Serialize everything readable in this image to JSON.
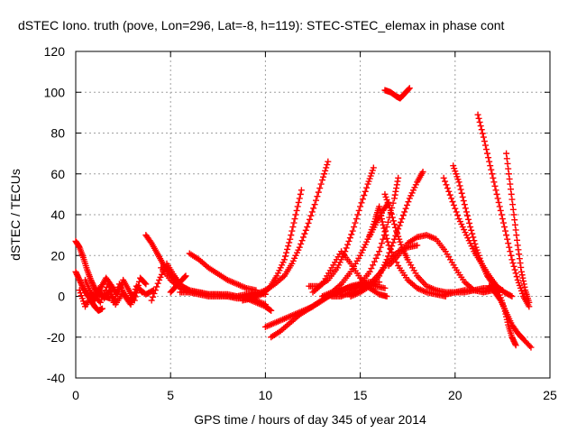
{
  "chart_data": {
    "type": "scatter",
    "title": "dSTEC Iono. truth (pove, Lon=296, Lat=-8, h=119): STEC-STEC_elemax in phase cont",
    "xlabel": "GPS time / hours of day 345 of year 2014",
    "ylabel": "dSTEC  / TECUs",
    "xlim": [
      0,
      25
    ],
    "ylim": [
      -40,
      120
    ],
    "xticks": [
      "0",
      "5",
      "10",
      "15",
      "20",
      "25"
    ],
    "yticks": [
      "-40",
      "-20",
      "0",
      "20",
      "40",
      "60",
      "80",
      "100",
      "120"
    ],
    "grid": true,
    "marker": "+",
    "color": "#ff0000",
    "series": [
      {
        "x": [
          0.0,
          0.2,
          0.4,
          0.6,
          0.8,
          1.0,
          1.2,
          1.4
        ],
        "y": [
          12,
          8,
          4,
          1,
          -2,
          -5,
          -7,
          -6
        ]
      },
      {
        "x": [
          0.0,
          0.2,
          0.4,
          0.6,
          0.8,
          1.0,
          1.2,
          1.5,
          1.8
        ],
        "y": [
          27,
          24,
          19,
          13,
          8,
          4,
          1,
          0,
          -1
        ]
      },
      {
        "x": [
          0.5,
          0.8,
          1.0,
          1.2,
          1.5,
          1.8,
          2.0,
          2.3,
          2.6,
          2.9,
          3.2,
          3.5
        ],
        "y": [
          8,
          2,
          -2,
          4,
          -1,
          3,
          -3,
          6,
          0,
          -4,
          5,
          2
        ]
      },
      {
        "x": [
          1.0,
          1.3,
          1.6,
          1.9,
          2.2,
          2.5,
          2.8,
          3.1,
          3.4,
          3.7
        ],
        "y": [
          0,
          4,
          9,
          5,
          1,
          8,
          3,
          -2,
          9,
          6
        ]
      },
      {
        "x": [
          0.2,
          0.5,
          0.9,
          1.3,
          1.7,
          2.1,
          2.5,
          2.9,
          3.3,
          3.7,
          4.1
        ],
        "y": [
          3,
          -5,
          1,
          -3,
          6,
          -4,
          2,
          -3,
          4,
          1,
          3
        ]
      },
      {
        "x": [
          3.7,
          4.0,
          4.3,
          4.6,
          4.9,
          5.2,
          5.5
        ],
        "y": [
          30,
          26,
          21,
          16,
          12,
          8,
          6
        ]
      },
      {
        "x": [
          4.0,
          4.4,
          4.8,
          5.2,
          5.6,
          6.0,
          6.5,
          7.0,
          7.5,
          8.0,
          8.5,
          9.0,
          9.5,
          10.0,
          10.3
        ],
        "y": [
          -2,
          8,
          16,
          10,
          5,
          3,
          2,
          1,
          1,
          0,
          0,
          -1,
          -3,
          -5,
          -7
        ]
      },
      {
        "x": [
          4.5,
          5.0,
          5.5,
          6.0,
          6.5,
          7.0,
          7.5,
          8.0,
          8.5,
          9.0,
          9.5,
          10.0
        ],
        "y": [
          14,
          8,
          4,
          2,
          1,
          0,
          0,
          0,
          -1,
          -1,
          -2,
          -4
        ]
      },
      {
        "x": [
          5.0,
          5.3,
          5.6,
          5.8
        ],
        "y": [
          2,
          5,
          8,
          10
        ]
      },
      {
        "x": [
          5.5,
          6.0,
          6.5,
          7.0,
          7.5,
          8.0,
          8.5,
          9.0,
          9.5,
          10.0
        ],
        "y": [
          2,
          2,
          2,
          1,
          1,
          1,
          0,
          1,
          2,
          1
        ]
      },
      {
        "x": [
          6.0,
          6.5,
          7.0,
          7.5,
          8.0,
          8.5,
          9.0,
          9.5
        ],
        "y": [
          21,
          18,
          14,
          11,
          8,
          6,
          4,
          3
        ]
      },
      {
        "x": [
          8.8,
          9.3,
          9.8,
          10.2,
          10.6,
          11.0,
          11.3,
          11.6,
          11.9
        ],
        "y": [
          -2,
          -1,
          1,
          4,
          10,
          18,
          28,
          40,
          52
        ]
      },
      {
        "x": [
          9.0,
          9.5,
          10.0,
          10.5,
          11.0,
          11.4,
          11.8,
          12.2,
          12.6,
          13.0,
          13.3
        ],
        "y": [
          0,
          1,
          3,
          6,
          10,
          16,
          24,
          34,
          45,
          57,
          66
        ]
      },
      {
        "x": [
          10.0,
          10.5,
          11.0,
          11.5,
          12.0,
          12.5,
          13.0,
          13.5,
          14.0,
          14.5,
          15.0,
          15.5,
          16.0
        ],
        "y": [
          -15,
          -13,
          -11,
          -9,
          -7,
          -5,
          -2,
          1,
          3,
          5,
          6,
          7,
          7
        ]
      },
      {
        "x": [
          10.3,
          10.8,
          11.3,
          11.8,
          12.3,
          12.8,
          13.3,
          13.8,
          14.3,
          14.8,
          15.3,
          15.8,
          16.3
        ],
        "y": [
          -20,
          -17,
          -13,
          -9,
          -6,
          -3,
          0,
          2,
          4,
          5,
          6,
          5,
          4
        ]
      },
      {
        "x": [
          12.3,
          12.8,
          13.3,
          13.8,
          14.2,
          14.6,
          15.0,
          15.4,
          15.7
        ],
        "y": [
          5,
          5,
          8,
          14,
          22,
          32,
          44,
          55,
          63
        ]
      },
      {
        "x": [
          12.5,
          13.0,
          13.5,
          14.0,
          14.5,
          15.0,
          15.5,
          16.0,
          16.4
        ],
        "y": [
          2,
          6,
          14,
          22,
          16,
          9,
          4,
          1,
          0
        ]
      },
      {
        "x": [
          13.0,
          13.5,
          14.0,
          14.5,
          15.0,
          15.4,
          15.8,
          16.2,
          16.5
        ],
        "y": [
          0,
          2,
          6,
          12,
          20,
          28,
          35,
          42,
          46
        ]
      },
      {
        "x": [
          13.5,
          14.0,
          14.5,
          15.0,
          15.5,
          16.0,
          16.4,
          16.8,
          17.0
        ],
        "y": [
          0,
          0,
          2,
          6,
          12,
          22,
          34,
          48,
          58
        ]
      },
      {
        "x": [
          14.0,
          14.5,
          15.0,
          15.5,
          16.0,
          16.5,
          17.0,
          17.5,
          18.0
        ],
        "y": [
          1,
          1,
          3,
          6,
          11,
          17,
          22,
          24,
          25
        ]
      },
      {
        "x": [
          14.5,
          15.0,
          15.5,
          16.0,
          16.4,
          16.8,
          17.2,
          17.6,
          18.0,
          18.3
        ],
        "y": [
          0,
          2,
          5,
          10,
          18,
          28,
          38,
          48,
          56,
          61
        ]
      },
      {
        "x": [
          15.5,
          15.8,
          16.0,
          16.2,
          16.5,
          17.0,
          17.5,
          18.0,
          18.5,
          19.0,
          19.5
        ],
        "y": [
          30,
          38,
          44,
          35,
          25,
          15,
          8,
          4,
          2,
          1,
          0
        ]
      },
      {
        "x": [
          16.3,
          16.6,
          16.9,
          17.2,
          17.5,
          18.0,
          18.5,
          19.0,
          19.5,
          20.0,
          20.5,
          21.0
        ],
        "y": [
          50,
          42,
          32,
          24,
          18,
          10,
          5,
          3,
          2,
          2,
          2,
          3
        ]
      },
      {
        "x": [
          16.3,
          16.6,
          16.9,
          17.1,
          17.3,
          17.6
        ],
        "y": [
          101,
          100,
          98,
          97,
          99,
          102
        ]
      },
      {
        "x": [
          16.5,
          17.0,
          17.5,
          18.0,
          18.5,
          19.0,
          19.5,
          20.0,
          20.5,
          21.0,
          21.5,
          22.0
        ],
        "y": [
          15,
          20,
          26,
          29,
          30,
          28,
          22,
          14,
          7,
          3,
          2,
          3
        ]
      },
      {
        "x": [
          19.4,
          19.8,
          20.2,
          20.6,
          21.0,
          21.4,
          21.8,
          22.2,
          22.6,
          23.0
        ],
        "y": [
          58,
          48,
          38,
          30,
          22,
          16,
          10,
          5,
          2,
          0
        ]
      },
      {
        "x": [
          19.9,
          20.2,
          20.5,
          20.8,
          21.1,
          21.4,
          21.7,
          22.0,
          22.3
        ],
        "y": [
          64,
          56,
          45,
          34,
          24,
          16,
          10,
          6,
          3
        ]
      },
      {
        "x": [
          21.2,
          21.5,
          21.8,
          22.1,
          22.4,
          22.7,
          23.0,
          23.3,
          23.6,
          23.9
        ],
        "y": [
          89,
          78,
          66,
          54,
          42,
          30,
          18,
          8,
          0,
          -5
        ]
      },
      {
        "x": [
          22.7,
          22.9,
          23.1,
          23.3,
          23.5,
          23.7,
          23.9
        ],
        "y": [
          70,
          55,
          40,
          25,
          12,
          3,
          -3
        ]
      },
      {
        "x": [
          21.8,
          22.1,
          22.4,
          22.7,
          23.0,
          23.3,
          23.6,
          24.0
        ],
        "y": [
          5,
          2,
          -2,
          -8,
          -14,
          -18,
          -21,
          -25
        ]
      },
      {
        "x": [
          21.5,
          22.0,
          22.3,
          22.6,
          22.8,
          23.0,
          23.2
        ],
        "y": [
          2,
          4,
          2,
          -6,
          -14,
          -20,
          -24
        ]
      },
      {
        "x": [
          19.5,
          20.0,
          20.5,
          21.0,
          21.5,
          22.0,
          22.5
        ],
        "y": [
          1,
          2,
          3,
          3,
          4,
          4,
          3
        ]
      }
    ]
  }
}
